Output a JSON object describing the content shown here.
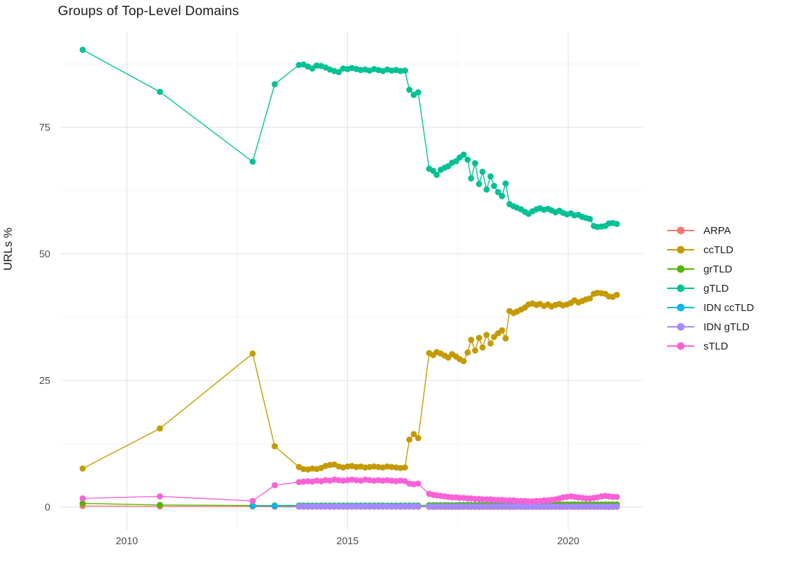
{
  "colors": {
    "background": "#FFFFFF",
    "grid_major": "#E4E4E4",
    "grid_minor": "#F1F1F1",
    "tick_label": "#4D4D4D",
    "text": "#1A1A1A"
  },
  "chart_data": {
    "type": "line",
    "title": "Groups of Top-Level Domains",
    "xlabel": "",
    "ylabel": "URLs %",
    "legend_position": "right",
    "grid": "major and minor, light gray on white panel",
    "marker": "filled circles connected by thin lines",
    "xlim": [
      2008.5,
      2021.69
    ],
    "ylim": [
      -4.5,
      93.75
    ],
    "x_ticks": [
      2010,
      2015,
      2020
    ],
    "x_tick_labels": [
      "2010",
      "2015",
      "2020"
    ],
    "x_minor_ticks": [
      2012.5,
      2017.5
    ],
    "y_ticks": [
      0,
      25,
      50,
      75
    ],
    "y_tick_labels": [
      "0",
      "25",
      "50",
      "75"
    ],
    "y_minor_ticks": [
      12.5,
      37.5,
      62.5,
      87.5
    ],
    "x": [
      2009.0,
      2010.75,
      2012.85,
      2013.35,
      2013.9,
      2014.0,
      2014.1,
      2014.2,
      2014.3,
      2014.4,
      2014.5,
      2014.6,
      2014.7,
      2014.8,
      2014.9,
      2015.0,
      2015.1,
      2015.2,
      2015.3,
      2015.4,
      2015.5,
      2015.6,
      2015.7,
      2015.8,
      2015.9,
      2016.0,
      2016.1,
      2016.2,
      2016.3,
      2016.4,
      2016.5,
      2016.6,
      2016.85,
      2016.94,
      2017.02,
      2017.11,
      2017.2,
      2017.28,
      2017.37,
      2017.46,
      2017.54,
      2017.63,
      2017.72,
      2017.8,
      2017.89,
      2017.98,
      2018.06,
      2018.15,
      2018.24,
      2018.32,
      2018.41,
      2018.5,
      2018.58,
      2018.67,
      2018.76,
      2018.84,
      2018.93,
      2019.02,
      2019.1,
      2019.19,
      2019.28,
      2019.36,
      2019.45,
      2019.54,
      2019.62,
      2019.71,
      2019.8,
      2019.88,
      2019.97,
      2020.06,
      2020.14,
      2020.23,
      2020.32,
      2020.4,
      2020.49,
      2020.58,
      2020.66,
      2020.75,
      2020.84,
      2020.92,
      2021.01,
      2021.1
    ],
    "series": [
      {
        "name": "ARPA",
        "color": "#F8766D",
        "values": [
          0.2,
          0.1,
          0.1,
          0.05,
          0.05,
          0.05,
          0.05,
          0.05,
          0.05,
          0.05,
          0.05,
          0.05,
          0.05,
          0.05,
          0.05,
          0.05,
          0.05,
          0.05,
          0.05,
          0.05,
          0.05,
          0.05,
          0.05,
          0.05,
          0.05,
          0.05,
          0.05,
          0.05,
          0.05,
          0.05,
          0.05,
          0.05,
          0.03,
          0.03,
          0.03,
          0.03,
          0.03,
          0.03,
          0.03,
          0.03,
          0.03,
          0.03,
          0.03,
          0.03,
          0.03,
          0.03,
          0.03,
          0.03,
          0.03,
          0.03,
          0.03,
          0.03,
          0.03,
          0.03,
          0.03,
          0.03,
          0.03,
          0.03,
          0.03,
          0.03,
          0.03,
          0.03,
          0.03,
          0.03,
          0.03,
          0.03,
          0.03,
          0.03,
          0.03,
          0.03,
          0.03,
          0.03,
          0.03,
          0.03,
          0.03,
          0.03,
          0.03,
          0.03,
          0.03,
          0.03,
          0.03,
          0.03
        ]
      },
      {
        "name": "ccTLD",
        "color": "#C49A00",
        "values": [
          7.6,
          15.5,
          30.3,
          12.0,
          7.9,
          7.5,
          7.4,
          7.6,
          7.5,
          7.7,
          8.1,
          8.3,
          8.4,
          8.0,
          7.8,
          8.0,
          8.1,
          7.9,
          8.0,
          7.8,
          7.9,
          8.0,
          7.9,
          7.8,
          8.0,
          7.9,
          7.8,
          7.7,
          7.8,
          13.3,
          14.4,
          13.6,
          30.4,
          30.0,
          30.6,
          30.3,
          29.9,
          29.5,
          30.2,
          29.7,
          29.2,
          28.8,
          30.5,
          33.0,
          30.9,
          33.4,
          31.5,
          34.0,
          32.3,
          33.6,
          34.3,
          34.9,
          33.3,
          38.7,
          38.3,
          38.6,
          39.0,
          39.4,
          40.0,
          40.2,
          39.9,
          40.1,
          39.7,
          40.0,
          39.6,
          39.9,
          40.1,
          39.8,
          40.0,
          40.3,
          40.8,
          40.4,
          40.7,
          41.0,
          41.2,
          42.1,
          42.3,
          42.2,
          42.1,
          41.6,
          41.5,
          41.9
        ]
      },
      {
        "name": "grTLD",
        "color": "#53B400",
        "values": [
          0.7,
          0.4,
          0.3,
          0.3,
          0.3,
          0.3,
          0.3,
          0.3,
          0.3,
          0.3,
          0.3,
          0.3,
          0.3,
          0.3,
          0.3,
          0.3,
          0.3,
          0.3,
          0.3,
          0.3,
          0.3,
          0.3,
          0.3,
          0.3,
          0.3,
          0.3,
          0.3,
          0.3,
          0.3,
          0.3,
          0.3,
          0.3,
          0.35,
          0.35,
          0.35,
          0.35,
          0.35,
          0.35,
          0.35,
          0.35,
          0.4,
          0.4,
          0.4,
          0.4,
          0.4,
          0.4,
          0.4,
          0.4,
          0.4,
          0.4,
          0.4,
          0.4,
          0.4,
          0.4,
          0.4,
          0.4,
          0.45,
          0.45,
          0.45,
          0.45,
          0.45,
          0.45,
          0.45,
          0.45,
          0.45,
          0.45,
          0.5,
          0.5,
          0.5,
          0.5,
          0.5,
          0.5,
          0.5,
          0.5,
          0.5,
          0.5,
          0.5,
          0.5,
          0.5,
          0.5,
          0.5,
          0.5
        ]
      },
      {
        "name": "gTLD",
        "color": "#00C094",
        "values": [
          90.3,
          82.0,
          68.2,
          83.5,
          87.3,
          87.4,
          87.0,
          86.6,
          87.2,
          87.1,
          86.8,
          86.4,
          86.1,
          85.9,
          86.6,
          86.5,
          86.7,
          86.5,
          86.3,
          86.4,
          86.2,
          86.5,
          86.3,
          86.1,
          86.4,
          86.2,
          86.3,
          86.1,
          86.2,
          82.4,
          81.4,
          81.9,
          66.8,
          66.4,
          65.6,
          66.6,
          67.0,
          67.3,
          68.0,
          68.3,
          69.0,
          69.6,
          68.6,
          64.9,
          67.9,
          63.8,
          66.2,
          62.7,
          65.3,
          63.4,
          62.2,
          61.4,
          63.9,
          59.8,
          59.4,
          59.1,
          58.8,
          58.3,
          57.9,
          58.4,
          58.8,
          59.0,
          58.7,
          58.9,
          58.6,
          58.2,
          58.5,
          58.1,
          57.8,
          58.0,
          57.6,
          57.7,
          57.3,
          57.1,
          56.9,
          55.5,
          55.3,
          55.4,
          55.5,
          56.0,
          56.1,
          55.9
        ]
      },
      {
        "name": "IDN ccTLD",
        "color": "#00B6EB",
        "values": [
          null,
          null,
          0.2,
          0.2,
          0.2,
          0.2,
          0.2,
          0.2,
          0.2,
          0.2,
          0.2,
          0.2,
          0.2,
          0.2,
          0.2,
          0.2,
          0.2,
          0.2,
          0.2,
          0.2,
          0.2,
          0.2,
          0.2,
          0.2,
          0.2,
          0.2,
          0.2,
          0.2,
          0.2,
          0.2,
          0.2,
          0.2,
          0.15,
          0.15,
          0.15,
          0.15,
          0.15,
          0.15,
          0.15,
          0.15,
          0.15,
          0.15,
          0.15,
          0.15,
          0.15,
          0.15,
          0.15,
          0.15,
          0.15,
          0.15,
          0.15,
          0.15,
          0.15,
          0.15,
          0.15,
          0.15,
          0.1,
          0.1,
          0.1,
          0.1,
          0.1,
          0.1,
          0.1,
          0.1,
          0.1,
          0.1,
          0.1,
          0.1,
          0.1,
          0.1,
          0.1,
          0.1,
          0.1,
          0.1,
          0.1,
          0.1,
          0.1,
          0.1,
          0.1,
          0.1,
          0.1,
          0.1
        ]
      },
      {
        "name": "IDN gTLD",
        "color": "#A58AFF",
        "values": [
          null,
          null,
          null,
          null,
          0.1,
          0.1,
          0.1,
          0.1,
          0.1,
          0.1,
          0.1,
          0.1,
          0.1,
          0.1,
          0.1,
          0.1,
          0.1,
          0.1,
          0.1,
          0.1,
          0.1,
          0.1,
          0.1,
          0.1,
          0.1,
          0.1,
          0.1,
          0.1,
          0.1,
          0.1,
          0.1,
          0.1,
          0.1,
          0.1,
          0.1,
          0.1,
          0.1,
          0.1,
          0.1,
          0.1,
          0.1,
          0.1,
          0.1,
          0.1,
          0.1,
          0.1,
          0.1,
          0.1,
          0.1,
          0.1,
          0.1,
          0.1,
          0.1,
          0.1,
          0.1,
          0.1,
          0.1,
          0.1,
          0.1,
          0.1,
          0.1,
          0.1,
          0.1,
          0.1,
          0.1,
          0.1,
          0.1,
          0.1,
          0.1,
          0.1,
          0.1,
          0.1,
          0.1,
          0.1,
          0.1,
          0.1,
          0.1,
          0.1,
          0.1,
          0.1,
          0.1,
          0.1
        ]
      },
      {
        "name": "sTLD",
        "color": "#FB61D7",
        "values": [
          1.7,
          2.1,
          1.2,
          4.3,
          4.9,
          5.0,
          5.1,
          5.0,
          5.2,
          5.1,
          5.3,
          5.2,
          5.4,
          5.3,
          5.2,
          5.3,
          5.4,
          5.3,
          5.2,
          5.4,
          5.3,
          5.2,
          5.3,
          5.2,
          5.3,
          5.2,
          5.1,
          5.2,
          5.1,
          4.6,
          4.5,
          4.6,
          2.6,
          2.4,
          2.3,
          2.2,
          2.1,
          2.0,
          1.9,
          1.9,
          1.8,
          1.8,
          1.7,
          1.7,
          1.6,
          1.6,
          1.5,
          1.5,
          1.5,
          1.4,
          1.4,
          1.4,
          1.3,
          1.3,
          1.3,
          1.2,
          1.2,
          1.2,
          1.1,
          1.1,
          1.2,
          1.2,
          1.3,
          1.3,
          1.4,
          1.5,
          1.7,
          1.9,
          2.0,
          2.1,
          2.0,
          1.9,
          1.8,
          1.7,
          1.7,
          1.8,
          1.9,
          2.1,
          2.2,
          2.1,
          2.0,
          2.0
        ]
      }
    ]
  }
}
